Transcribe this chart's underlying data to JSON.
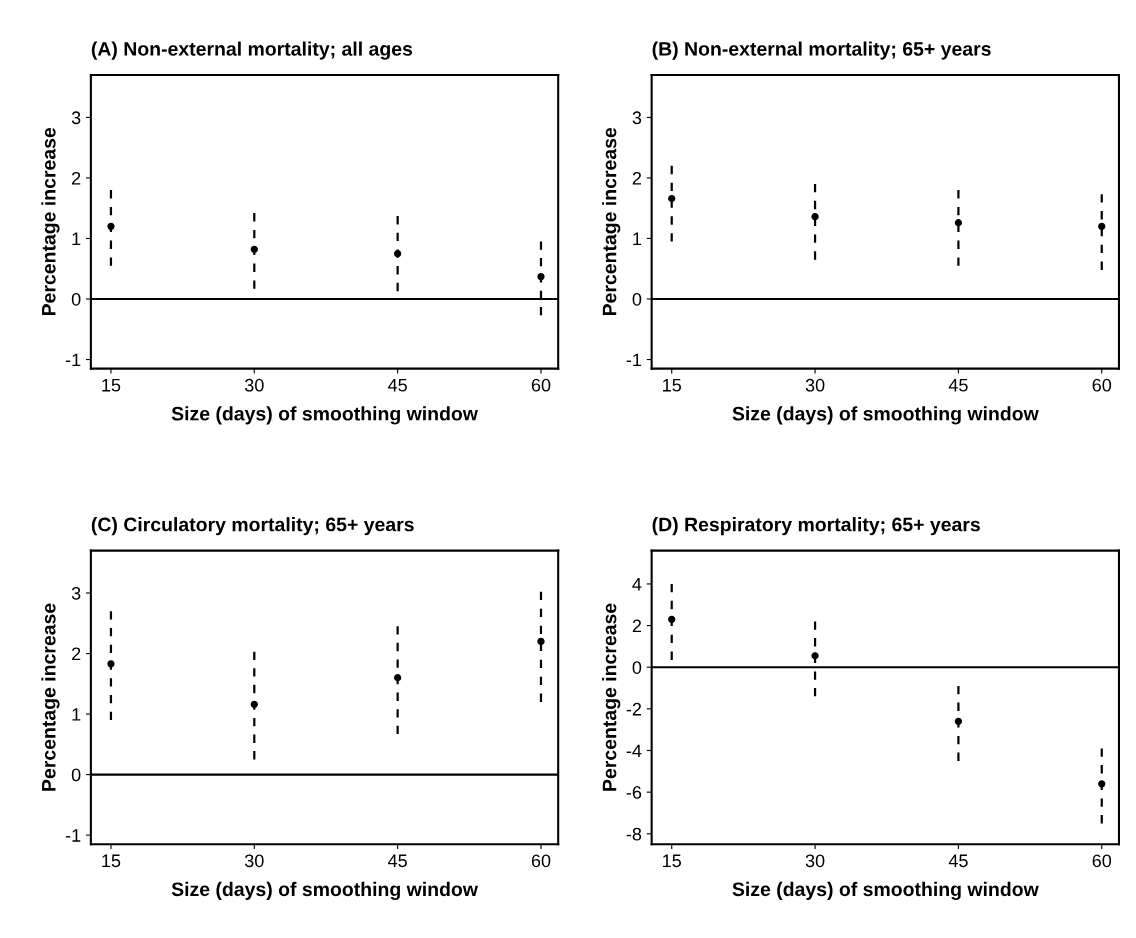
{
  "chart_data": [
    {
      "type": "scatter",
      "title": "(A) Non-external mortality; all ages",
      "xlabel": "Size (days) of smoothing window",
      "ylabel": "Percentage increase",
      "x": [
        15,
        30,
        45,
        60
      ],
      "values": [
        1.2,
        0.82,
        0.75,
        0.37
      ],
      "errors": [
        [
          0.55,
          1.8
        ],
        [
          0.17,
          1.42
        ],
        [
          0.13,
          1.37
        ],
        [
          -0.27,
          0.95
        ]
      ],
      "color": "#000000",
      "marker": "circle",
      "line_style": "dashed",
      "xlim": [
        12.9,
        61.8
      ],
      "xticks": [
        15,
        30,
        45,
        60
      ],
      "ylim": [
        -1.15,
        3.7
      ],
      "yticks": [
        {
          "value": -1,
          "label": "-1"
        },
        0,
        1,
        2,
        3
      ],
      "ref_lines": [
        {
          "axis": "y",
          "value": 0,
          "color": "#000000",
          "line_style": "solid"
        }
      ],
      "grid": false,
      "legend": false
    },
    {
      "type": "scatter",
      "title": "(B) Non-external mortality; 65+ years",
      "xlabel": "Size (days) of smoothing window",
      "ylabel": "Percentage increase",
      "x": [
        15,
        30,
        45,
        60
      ],
      "values": [
        1.66,
        1.36,
        1.26,
        1.2
      ],
      "errors": [
        [
          0.95,
          2.2
        ],
        [
          0.65,
          1.9
        ],
        [
          0.55,
          1.8
        ],
        [
          0.48,
          1.73
        ]
      ],
      "color": "#000000",
      "marker": "circle",
      "line_style": "dashed",
      "xlim": [
        12.9,
        61.8
      ],
      "xticks": [
        15,
        30,
        45,
        60
      ],
      "ylim": [
        -1.15,
        3.7
      ],
      "yticks": [
        {
          "value": -1,
          "label": "-1"
        },
        0,
        1,
        2,
        3
      ],
      "ref_lines": [
        {
          "axis": "y",
          "value": 0,
          "color": "#000000",
          "line_style": "solid"
        }
      ],
      "grid": false,
      "legend": false
    },
    {
      "type": "scatter",
      "title": "(C) Circulatory mortality; 65+ years",
      "xlabel": "Size (days) of smoothing window",
      "ylabel": "Percentage increase",
      "x": [
        15,
        30,
        45,
        60
      ],
      "values": [
        1.83,
        1.16,
        1.6,
        2.2
      ],
      "errors": [
        [
          0.9,
          2.7
        ],
        [
          0.25,
          2.03
        ],
        [
          0.67,
          2.45
        ],
        [
          1.2,
          3.02
        ]
      ],
      "color": "#000000",
      "marker": "circle",
      "line_style": "dashed",
      "xlim": [
        12.9,
        61.8
      ],
      "xticks": [
        15,
        30,
        45,
        60
      ],
      "ylim": [
        -1.15,
        3.7
      ],
      "yticks": [
        {
          "value": -1,
          "label": "-1"
        },
        0,
        1,
        2,
        3
      ],
      "ref_lines": [
        {
          "axis": "y",
          "value": 0,
          "color": "#000000",
          "line_style": "solid"
        }
      ],
      "grid": false,
      "legend": false
    },
    {
      "type": "scatter",
      "title": "(D) Respiratory mortality; 65+ years",
      "xlabel": "Size (days) of smoothing window",
      "ylabel": "Percentage increase",
      "x": [
        15,
        30,
        45,
        60
      ],
      "values": [
        2.3,
        0.55,
        -2.6,
        -5.6
      ],
      "errors": [
        [
          0.35,
          4.0
        ],
        [
          -1.4,
          2.2
        ],
        [
          -4.5,
          -0.9
        ],
        [
          -7.5,
          -3.9
        ]
      ],
      "color": "#000000",
      "marker": "circle",
      "line_style": "dashed",
      "xlim": [
        12.9,
        61.8
      ],
      "xticks": [
        15,
        30,
        45,
        60
      ],
      "ylim": [
        -8.5,
        5.6
      ],
      "yticks": [
        {
          "value": -8,
          "label": "-8"
        },
        {
          "value": -6,
          "label": "-6"
        },
        {
          "value": -4,
          "label": "-4"
        },
        {
          "value": -2,
          "label": "-2"
        },
        0,
        2,
        4
      ],
      "ref_lines": [
        {
          "axis": "y",
          "value": 0,
          "color": "#000000",
          "line_style": "solid"
        }
      ],
      "grid": false,
      "legend": false
    }
  ]
}
